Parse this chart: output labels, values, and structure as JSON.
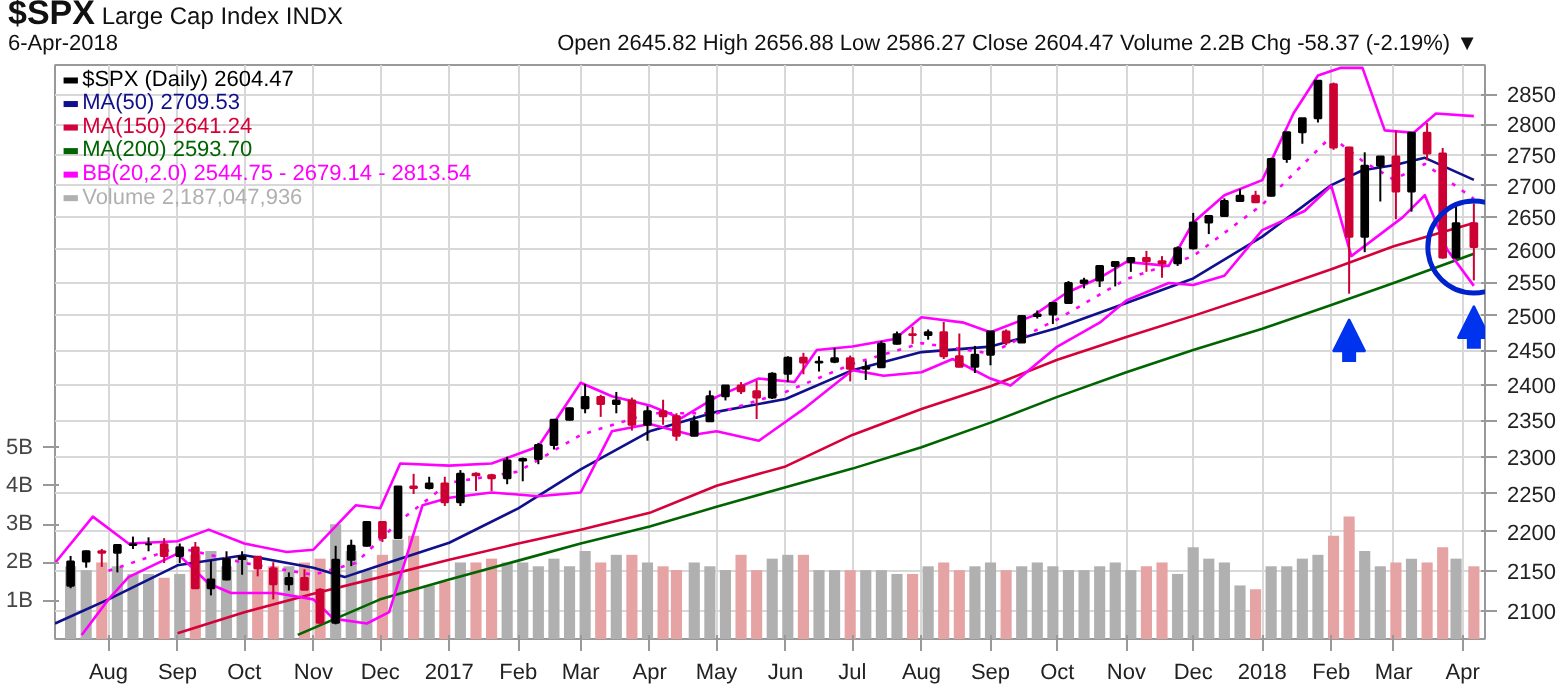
{
  "chart_data": {
    "type": "candlestick",
    "title": "$SPX",
    "subtitle": "Large Cap Index  INDX",
    "annotations": [
      "6-Apr-2018",
      "Open 2645.82  High 2656.88  Low 2586.27  Close 2604.47  Volume 2.2B  Chg -58.37 (-2.19%) ▼"
    ],
    "x": [
      "2016-07-15",
      "2016-07-22",
      "2016-07-29",
      "2016-08-05",
      "2016-08-12",
      "2016-08-19",
      "2016-08-26",
      "2016-09-02",
      "2016-09-09",
      "2016-09-16",
      "2016-09-23",
      "2016-09-30",
      "2016-10-07",
      "2016-10-14",
      "2016-10-21",
      "2016-10-28",
      "2016-11-04",
      "2016-11-11",
      "2016-11-18",
      "2016-11-25",
      "2016-12-02",
      "2016-12-09",
      "2016-12-16",
      "2016-12-23",
      "2016-12-30",
      "2017-01-06",
      "2017-01-13",
      "2017-01-20",
      "2017-01-27",
      "2017-02-03",
      "2017-02-10",
      "2017-02-17",
      "2017-02-24",
      "2017-03-03",
      "2017-03-10",
      "2017-03-17",
      "2017-03-24",
      "2017-03-31",
      "2017-04-07",
      "2017-04-13",
      "2017-04-21",
      "2017-04-28",
      "2017-05-05",
      "2017-05-12",
      "2017-05-19",
      "2017-05-26",
      "2017-06-02",
      "2017-06-09",
      "2017-06-16",
      "2017-06-23",
      "2017-06-30",
      "2017-07-07",
      "2017-07-14",
      "2017-07-21",
      "2017-07-28",
      "2017-08-04",
      "2017-08-11",
      "2017-08-18",
      "2017-08-25",
      "2017-09-01",
      "2017-09-08",
      "2017-09-15",
      "2017-09-22",
      "2017-09-29",
      "2017-10-06",
      "2017-10-13",
      "2017-10-20",
      "2017-10-27",
      "2017-11-03",
      "2017-11-10",
      "2017-11-17",
      "2017-11-24",
      "2017-12-01",
      "2017-12-08",
      "2017-12-15",
      "2017-12-22",
      "2017-12-29",
      "2018-01-05",
      "2018-01-12",
      "2018-01-19",
      "2018-01-26",
      "2018-02-02",
      "2018-02-09",
      "2018-02-16",
      "2018-02-23",
      "2018-03-02",
      "2018-03-09",
      "2018-03-16",
      "2018-03-23",
      "2018-03-29",
      "2018-04-06"
    ],
    "series": [
      {
        "type": "bar",
        "axis": "y2",
        "name": "Volume 2,187,047,936",
        "color": "#b0b0b0",
        "values": [
          1.9,
          1.8,
          2.0,
          1.9,
          1.7,
          1.7,
          1.6,
          1.7,
          2.2,
          2.3,
          1.9,
          2.1,
          1.8,
          1.9,
          1.9,
          2.0,
          2.1,
          3.0,
          2.3,
          1.8,
          2.2,
          2.6,
          2.7,
          1.4,
          1.5,
          2.0,
          2.0,
          2.1,
          2.0,
          2.0,
          1.9,
          2.1,
          1.9,
          2.3,
          2.0,
          2.2,
          2.2,
          2.0,
          1.9,
          1.8,
          2.0,
          1.9,
          1.8,
          2.2,
          1.8,
          2.1,
          2.2,
          2.2,
          1.8,
          1.8,
          1.8,
          1.8,
          1.8,
          1.7,
          1.7,
          1.9,
          2.0,
          1.8,
          1.9,
          2.0,
          1.8,
          1.9,
          2.0,
          1.9,
          1.8,
          1.8,
          1.9,
          2.0,
          1.8,
          1.9,
          2.0,
          1.7,
          2.4,
          2.1,
          2.0,
          1.4,
          1.3,
          1.9,
          1.9,
          2.1,
          2.2,
          2.7,
          3.2,
          2.3,
          1.9,
          2.0,
          2.1,
          2.0,
          2.4,
          2.1,
          1.9
        ],
        "colors": [
          "#b0b0b0",
          "#b0b0b0",
          "#e6a3a3",
          "#b0b0b0",
          "#b0b0b0",
          "#b0b0b0",
          "#e6a3a3",
          "#b0b0b0",
          "#e6a3a3",
          "#b0b0b0",
          "#b0b0b0",
          "#b0b0b0",
          "#e6a3a3",
          "#e6a3a3",
          "#b0b0b0",
          "#e6a3a3",
          "#e6a3a3",
          "#b0b0b0",
          "#b0b0b0",
          "#b0b0b0",
          "#e6a3a3",
          "#b0b0b0",
          "#e6a3a3",
          "#b0b0b0",
          "#e6a3a3",
          "#b0b0b0",
          "#e6a3a3",
          "#e6a3a3",
          "#b0b0b0",
          "#b0b0b0",
          "#b0b0b0",
          "#b0b0b0",
          "#b0b0b0",
          "#b0b0b0",
          "#e6a3a3",
          "#b0b0b0",
          "#e6a3a3",
          "#b0b0b0",
          "#e6a3a3",
          "#e6a3a3",
          "#b0b0b0",
          "#b0b0b0",
          "#b0b0b0",
          "#e6a3a3",
          "#e6a3a3",
          "#b0b0b0",
          "#b0b0b0",
          "#e6a3a3",
          "#b0b0b0",
          "#b0b0b0",
          "#e6a3a3",
          "#b0b0b0",
          "#b0b0b0",
          "#b0b0b0",
          "#e6a3a3",
          "#b0b0b0",
          "#e6a3a3",
          "#e6a3a3",
          "#b0b0b0",
          "#b0b0b0",
          "#e6a3a3",
          "#b0b0b0",
          "#b0b0b0",
          "#b0b0b0",
          "#b0b0b0",
          "#b0b0b0",
          "#b0b0b0",
          "#b0b0b0",
          "#b0b0b0",
          "#e6a3a3",
          "#e6a3a3",
          "#b0b0b0",
          "#b0b0b0",
          "#b0b0b0",
          "#b0b0b0",
          "#b0b0b0",
          "#e6a3a3",
          "#b0b0b0",
          "#b0b0b0",
          "#b0b0b0",
          "#b0b0b0",
          "#e6a3a3",
          "#e6a3a3",
          "#b0b0b0",
          "#b0b0b0",
          "#e6a3a3",
          "#b0b0b0",
          "#e6a3a3",
          "#e6a3a3",
          "#b0b0b0",
          "#e6a3a3"
        ]
      },
      {
        "type": "line",
        "name": "MA(50) 2709.53",
        "color": "#10108c",
        "x": [
          "2016-07-08",
          "2016-08-01",
          "2016-09-01",
          "2016-10-01",
          "2016-11-01",
          "2016-11-15",
          "2016-12-01",
          "2017-01-01",
          "2017-02-01",
          "2017-03-01",
          "2017-04-01",
          "2017-05-01",
          "2017-06-01",
          "2017-07-01",
          "2017-08-01",
          "2017-09-01",
          "2017-10-01",
          "2017-11-01",
          "2017-12-01",
          "2018-01-01",
          "2018-02-01",
          "2018-02-15",
          "2018-03-01",
          "2018-03-15",
          "2018-04-06"
        ],
        "values": [
          2084,
          2114,
          2157,
          2170,
          2154,
          2142,
          2157,
          2186,
          2231,
          2283,
          2335,
          2362,
          2380,
          2421,
          2447,
          2455,
          2482,
          2519,
          2556,
          2620,
          2701,
          2725,
          2733,
          2745,
          2709.53
        ]
      },
      {
        "type": "line",
        "name": "MA(150) 2641.24",
        "color": "#d6003a",
        "x": [
          "2016-09-01",
          "2016-10-01",
          "2016-11-01",
          "2016-12-01",
          "2017-01-01",
          "2017-02-01",
          "2017-03-01",
          "2017-04-01",
          "2017-05-01",
          "2017-06-01",
          "2017-07-01",
          "2017-08-01",
          "2017-09-01",
          "2017-10-01",
          "2017-11-01",
          "2017-12-01",
          "2018-01-01",
          "2018-02-01",
          "2018-03-01",
          "2018-04-06"
        ],
        "values": [
          2072,
          2098,
          2121,
          2142,
          2164,
          2185,
          2203,
          2225,
          2261,
          2287,
          2330,
          2366,
          2398,
          2436,
          2469,
          2500,
          2534,
          2570,
          2605,
          2641.24
        ]
      },
      {
        "type": "line",
        "name": "MA(200) 2593.70",
        "color": "#006400",
        "x": [
          "2016-10-25",
          "2016-12-01",
          "2017-01-01",
          "2017-02-01",
          "2017-03-01",
          "2017-04-01",
          "2017-05-01",
          "2017-06-01",
          "2017-07-01",
          "2017-08-01",
          "2017-09-01",
          "2017-10-01",
          "2017-11-01",
          "2017-12-01",
          "2018-01-01",
          "2018-02-01",
          "2018-03-01",
          "2018-04-06"
        ],
        "values": [
          2070,
          2114,
          2139,
          2163,
          2185,
          2207,
          2233,
          2259,
          2284,
          2313,
          2347,
          2383,
          2418,
          2450,
          2481,
          2516,
          2549,
          2593.7
        ]
      },
      {
        "type": "line",
        "name": "BB(20,2.0) 2544.75 - 2679.14 - 2813.54",
        "color": "#ff00ff",
        "x": [
          "2016-07-08",
          "2016-07-25",
          "2016-08-10",
          "2016-09-01",
          "2016-09-15",
          "2016-10-01",
          "2016-10-20",
          "2016-11-01",
          "2016-11-20",
          "2016-12-01",
          "2016-12-10",
          "2017-01-01",
          "2017-01-20",
          "2017-02-10",
          "2017-03-01",
          "2017-03-15",
          "2017-04-01",
          "2017-04-15",
          "2017-05-01",
          "2017-05-20",
          "2017-06-05",
          "2017-06-15",
          "2017-07-01",
          "2017-07-20",
          "2017-08-01",
          "2017-08-20",
          "2017-09-01",
          "2017-09-20",
          "2017-10-05",
          "2017-10-20",
          "2017-11-01",
          "2017-11-20",
          "2017-12-01",
          "2017-12-15",
          "2018-01-01",
          "2018-01-15",
          "2018-01-26",
          "2018-02-05",
          "2018-02-15",
          "2018-02-25",
          "2018-03-10",
          "2018-03-20",
          "2018-04-06"
        ],
        "values": [
          2160,
          2220,
          2185,
          2188,
          2203,
          2185,
          2174,
          2177,
          2235,
          2231,
          2291,
          2288,
          2291,
          2314,
          2403,
          2384,
          2371,
          2353,
          2383,
          2409,
          2404,
          2450,
          2455,
          2466,
          2498,
          2490,
          2476,
          2500,
          2534,
          2557,
          2581,
          2575,
          2642,
          2685,
          2709,
          2818,
          2882,
          2895,
          2895,
          2790,
          2786,
          2818,
          2813.54
        ]
      },
      {
        "type": "line",
        "line_style": "dotted",
        "color": "#ff00ff",
        "x": [
          "2016-08-01",
          "2016-09-01",
          "2016-10-01",
          "2016-11-01",
          "2016-11-20",
          "2016-12-10",
          "2017-01-01",
          "2017-02-01",
          "2017-03-01",
          "2017-04-01",
          "2017-05-01",
          "2017-06-01",
          "2017-07-01",
          "2017-08-01",
          "2017-09-01",
          "2017-10-01",
          "2017-11-01",
          "2017-12-01",
          "2018-01-01",
          "2018-02-01",
          "2018-02-15",
          "2018-03-01",
          "2018-03-15",
          "2018-04-06"
        ],
        "values": [
          2150,
          2180,
          2160,
          2145,
          2160,
          2215,
          2265,
          2280,
          2330,
          2360,
          2360,
          2390,
          2430,
          2460,
          2445,
          2495,
          2555,
          2590,
          2670,
          2780,
          2740,
          2710,
          2735,
          2679.14
        ]
      },
      {
        "type": "line",
        "color": "#ff00ff",
        "x": [
          "2016-07-20",
          "2016-08-01",
          "2016-08-10",
          "2016-09-01",
          "2016-09-15",
          "2016-09-25",
          "2016-10-15",
          "2016-11-01",
          "2016-11-10",
          "2016-11-25",
          "2016-12-05",
          "2016-12-20",
          "2017-01-01",
          "2017-01-20",
          "2017-02-10",
          "2017-03-01",
          "2017-03-15",
          "2017-04-01",
          "2017-04-20",
          "2017-05-01",
          "2017-05-20",
          "2017-06-10",
          "2017-07-01",
          "2017-07-15",
          "2017-08-01",
          "2017-08-15",
          "2017-09-01",
          "2017-09-10",
          "2017-10-01",
          "2017-10-20",
          "2017-11-01",
          "2017-11-20",
          "2017-12-01",
          "2017-12-15",
          "2018-01-01",
          "2018-01-20",
          "2018-02-01",
          "2018-02-10",
          "2018-03-05",
          "2018-03-15",
          "2018-03-25",
          "2018-04-06"
        ],
        "values": [
          2070,
          2114,
          2142,
          2172,
          2134,
          2122,
          2122,
          2114,
          2090,
          2084,
          2098,
          2235,
          2245,
          2252,
          2247,
          2252,
          2335,
          2345,
          2330,
          2335,
          2322,
          2368,
          2421,
          2413,
          2418,
          2437,
          2409,
          2399,
          2455,
          2490,
          2523,
          2549,
          2546,
          2560,
          2630,
          2660,
          2700,
          2590,
          2650,
          2685,
          2600,
          2544.75
        ]
      },
      {
        "name": "$SPX (Daily) 2604.47",
        "color": "#000000",
        "ohlc": [
          [
            2131,
            2169,
            2128,
            2162
          ],
          [
            2162,
            2176,
            2154,
            2175
          ],
          [
            2175,
            2178,
            2155,
            2173
          ],
          [
            2173,
            2183,
            2148,
            2183
          ],
          [
            2183,
            2194,
            2178,
            2184
          ],
          [
            2184,
            2193,
            2175,
            2184
          ],
          [
            2184,
            2192,
            2160,
            2169
          ],
          [
            2169,
            2185,
            2160,
            2180
          ],
          [
            2180,
            2187,
            2127,
            2128
          ],
          [
            2128,
            2163,
            2119,
            2139
          ],
          [
            2139,
            2175,
            2138,
            2165
          ],
          [
            2165,
            2175,
            2145,
            2168
          ],
          [
            2168,
            2169,
            2143,
            2153
          ],
          [
            2153,
            2161,
            2114,
            2133
          ],
          [
            2133,
            2148,
            2125,
            2141
          ],
          [
            2141,
            2152,
            2126,
            2126
          ],
          [
            2126,
            2128,
            2084,
            2085
          ],
          [
            2085,
            2182,
            2083,
            2164
          ],
          [
            2164,
            2190,
            2156,
            2182
          ],
          [
            2182,
            2214,
            2181,
            2213
          ],
          [
            2213,
            2214,
            2187,
            2192
          ],
          [
            2192,
            2260,
            2192,
            2260
          ],
          [
            2260,
            2277,
            2250,
            2258
          ],
          [
            2258,
            2273,
            2256,
            2264
          ],
          [
            2264,
            2273,
            2234,
            2239
          ],
          [
            2239,
            2282,
            2234,
            2277
          ],
          [
            2277,
            2279,
            2254,
            2275
          ],
          [
            2275,
            2277,
            2254,
            2271
          ],
          [
            2271,
            2300,
            2263,
            2295
          ],
          [
            2295,
            2299,
            2267,
            2297
          ],
          [
            2297,
            2319,
            2290,
            2316
          ],
          [
            2316,
            2351,
            2310,
            2351
          ],
          [
            2351,
            2368,
            2350,
            2367
          ],
          [
            2367,
            2401,
            2360,
            2383
          ],
          [
            2383,
            2386,
            2355,
            2373
          ],
          [
            2373,
            2390,
            2360,
            2378
          ],
          [
            2378,
            2382,
            2336,
            2344
          ],
          [
            2344,
            2370,
            2322,
            2363
          ],
          [
            2363,
            2379,
            2344,
            2356
          ],
          [
            2356,
            2360,
            2322,
            2329
          ],
          [
            2329,
            2357,
            2328,
            2349
          ],
          [
            2349,
            2392,
            2349,
            2384
          ],
          [
            2384,
            2399,
            2378,
            2399
          ],
          [
            2399,
            2404,
            2387,
            2391
          ],
          [
            2391,
            2406,
            2352,
            2382
          ],
          [
            2382,
            2418,
            2380,
            2416
          ],
          [
            2416,
            2441,
            2404,
            2439
          ],
          [
            2439,
            2446,
            2415,
            2432
          ],
          [
            2432,
            2441,
            2419,
            2433
          ],
          [
            2433,
            2453,
            2431,
            2438
          ],
          [
            2438,
            2442,
            2405,
            2423
          ],
          [
            2423,
            2434,
            2407,
            2425
          ],
          [
            2425,
            2463,
            2424,
            2459
          ],
          [
            2459,
            2477,
            2458,
            2473
          ],
          [
            2473,
            2484,
            2459,
            2472
          ],
          [
            2472,
            2480,
            2465,
            2476
          ],
          [
            2476,
            2491,
            2437,
            2441
          ],
          [
            2441,
            2474,
            2425,
            2426
          ],
          [
            2426,
            2456,
            2417,
            2443
          ],
          [
            2443,
            2477,
            2428,
            2477
          ],
          [
            2477,
            2480,
            2457,
            2461
          ],
          [
            2461,
            2501,
            2461,
            2500
          ],
          [
            2500,
            2508,
            2496,
            2502
          ],
          [
            2502,
            2520,
            2488,
            2519
          ],
          [
            2519,
            2552,
            2519,
            2549
          ],
          [
            2549,
            2557,
            2541,
            2553
          ],
          [
            2553,
            2575,
            2543,
            2575
          ],
          [
            2575,
            2582,
            2544,
            2581
          ],
          [
            2581,
            2588,
            2566,
            2587
          ],
          [
            2587,
            2598,
            2566,
            2582
          ],
          [
            2582,
            2590,
            2557,
            2579
          ],
          [
            2579,
            2605,
            2575,
            2602
          ],
          [
            2602,
            2657,
            2600,
            2642
          ],
          [
            2642,
            2653,
            2624,
            2652
          ],
          [
            2652,
            2680,
            2652,
            2676
          ],
          [
            2676,
            2695,
            2676,
            2684
          ],
          [
            2684,
            2692,
            2673,
            2674
          ],
          [
            2684,
            2745,
            2683,
            2743
          ],
          [
            2743,
            2787,
            2737,
            2787
          ],
          [
            2787,
            2810,
            2768,
            2810
          ],
          [
            2810,
            2873,
            2803,
            2873
          ],
          [
            2867,
            2870,
            2758,
            2762
          ],
          [
            2762,
            2763,
            2533,
            2620
          ],
          [
            2620,
            2754,
            2596,
            2732
          ],
          [
            2732,
            2747,
            2675,
            2747
          ],
          [
            2747,
            2790,
            2647,
            2691
          ],
          [
            2691,
            2787,
            2659,
            2786
          ],
          [
            2786,
            2802,
            2741,
            2752
          ],
          [
            2752,
            2761,
            2586,
            2588
          ],
          [
            2588,
            2674,
            2586,
            2641
          ],
          [
            2641,
            2672,
            2553,
            2604
          ]
        ],
        "colors": [
          "#000000",
          "#000000",
          "#cc0033",
          "#000000",
          "#000000",
          "#000000",
          "#cc0033",
          "#000000",
          "#cc0033",
          "#000000",
          "#000000",
          "#000000",
          "#cc0033",
          "#cc0033",
          "#000000",
          "#cc0033",
          "#cc0033",
          "#000000",
          "#000000",
          "#000000",
          "#cc0033",
          "#000000",
          "#cc0033",
          "#000000",
          "#cc0033",
          "#000000",
          "#cc0033",
          "#cc0033",
          "#000000",
          "#000000",
          "#000000",
          "#000000",
          "#000000",
          "#000000",
          "#cc0033",
          "#000000",
          "#cc0033",
          "#000000",
          "#cc0033",
          "#cc0033",
          "#000000",
          "#000000",
          "#000000",
          "#cc0033",
          "#cc0033",
          "#000000",
          "#000000",
          "#cc0033",
          "#000000",
          "#000000",
          "#cc0033",
          "#000000",
          "#000000",
          "#000000",
          "#cc0033",
          "#000000",
          "#cc0033",
          "#cc0033",
          "#000000",
          "#000000",
          "#cc0033",
          "#000000",
          "#000000",
          "#000000",
          "#000000",
          "#000000",
          "#000000",
          "#000000",
          "#000000",
          "#cc0033",
          "#cc0033",
          "#000000",
          "#000000",
          "#000000",
          "#000000",
          "#000000",
          "#cc0033",
          "#000000",
          "#000000",
          "#000000",
          "#000000",
          "#cc0033",
          "#cc0033",
          "#000000",
          "#000000",
          "#cc0033",
          "#000000",
          "#cc0033",
          "#cc0033",
          "#000000",
          "#cc0033"
        ]
      }
    ],
    "xlim": [
      "2016-07-08",
      "2018-04-11"
    ],
    "xticks": [
      {
        "value": "2016-08-01",
        "label": "Aug"
      },
      {
        "value": "2016-09-01",
        "label": "Sep"
      },
      {
        "value": "2016-10-01",
        "label": "Oct"
      },
      {
        "value": "2016-11-01",
        "label": "Nov"
      },
      {
        "value": "2016-12-01",
        "label": "Dec"
      },
      {
        "value": "2017-01-01",
        "label": "2017"
      },
      {
        "value": "2017-02-01",
        "label": "Feb"
      },
      {
        "value": "2017-03-01",
        "label": "Mar"
      },
      {
        "value": "2017-04-01",
        "label": "Apr"
      },
      {
        "value": "2017-05-01",
        "label": "May"
      },
      {
        "value": "2017-06-01",
        "label": "Jun"
      },
      {
        "value": "2017-07-01",
        "label": "Jul"
      },
      {
        "value": "2017-08-01",
        "label": "Aug"
      },
      {
        "value": "2017-09-01",
        "label": "Sep"
      },
      {
        "value": "2017-10-01",
        "label": "Oct"
      },
      {
        "value": "2017-11-01",
        "label": "Nov"
      },
      {
        "value": "2017-12-01",
        "label": "Dec"
      },
      {
        "value": "2018-01-01",
        "label": "2018"
      },
      {
        "value": "2018-02-01",
        "label": "Feb"
      },
      {
        "value": "2018-03-01",
        "label": "Mar"
      },
      {
        "value": "2018-04-01",
        "label": "Apr"
      }
    ],
    "ylim": [
      2065,
      2900
    ],
    "yticks": [
      2100,
      2150,
      2200,
      2250,
      2300,
      2350,
      2400,
      2450,
      2500,
      2550,
      2600,
      2650,
      2700,
      2750,
      2800,
      2850
    ],
    "y2lim": [
      0,
      15
    ],
    "y2ticks": [
      {
        "value": 1,
        "label": "1B"
      },
      {
        "value": 2,
        "label": "2B"
      },
      {
        "value": 3,
        "label": "3B"
      },
      {
        "value": 4,
        "label": "4B"
      },
      {
        "value": 5,
        "label": "5B"
      }
    ],
    "log": true,
    "grid": true,
    "legend": "top left"
  }
}
